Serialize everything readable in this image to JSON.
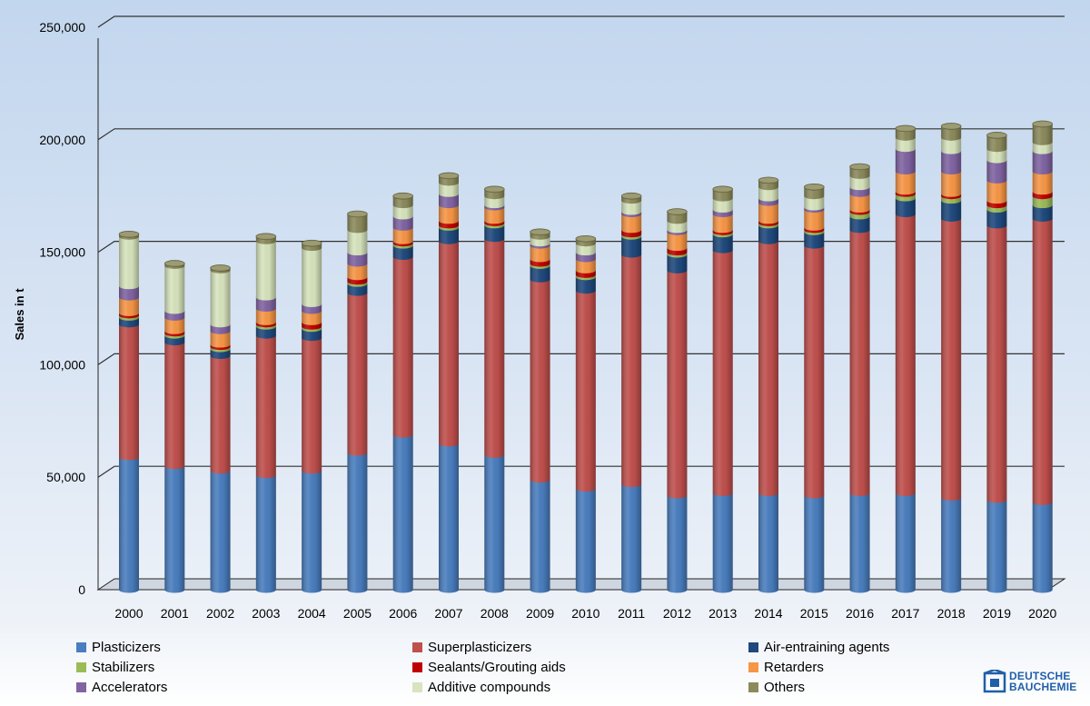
{
  "chart_data": {
    "type": "bar",
    "stacked": true,
    "ylabel": "Sales in t",
    "ylim": [
      0,
      250000
    ],
    "yticks": [
      "0",
      "50,000",
      "100,000",
      "150,000",
      "200,000",
      "250,000"
    ],
    "grid": true,
    "legend_position": "bottom",
    "categories": [
      "2000",
      "2001",
      "2002",
      "2003",
      "2004",
      "2005",
      "2006",
      "2007",
      "2008",
      "2009",
      "2010",
      "2011",
      "2012",
      "2013",
      "2014",
      "2015",
      "2016",
      "2017",
      "2018",
      "2019",
      "2020"
    ],
    "series": [
      {
        "name": "Plasticizers",
        "color": "#4a7ebf",
        "values": [
          59000,
          55000,
          53000,
          51000,
          53000,
          61000,
          69000,
          65000,
          60000,
          49000,
          45000,
          47000,
          42000,
          43000,
          43000,
          42000,
          43000,
          43000,
          41000,
          40000,
          39000
        ]
      },
      {
        "name": "Superplasticizers",
        "color": "#c0504d",
        "values": [
          59000,
          55000,
          51000,
          62000,
          59000,
          71000,
          79000,
          90000,
          96000,
          89000,
          88000,
          102000,
          100000,
          108000,
          112000,
          111000,
          117000,
          124000,
          124000,
          122000,
          126000
        ]
      },
      {
        "name": "Air-entraining agents",
        "color": "#1f497d",
        "values": [
          3000,
          3000,
          3000,
          4000,
          4000,
          4000,
          5000,
          6000,
          6000,
          6000,
          6000,
          8000,
          7000,
          7000,
          7000,
          6000,
          6000,
          7000,
          8000,
          7000,
          6000
        ]
      },
      {
        "name": "Stabilizers",
        "color": "#9bbb59",
        "values": [
          1000,
          1000,
          1000,
          1000,
          1000,
          1000,
          1000,
          1000,
          1000,
          1000,
          1000,
          1000,
          1000,
          1000,
          1000,
          1000,
          2000,
          2000,
          2000,
          2000,
          4000
        ]
      },
      {
        "name": "Sealants/Grouting aids",
        "color": "#c00000",
        "values": [
          1000,
          1000,
          1000,
          1000,
          2000,
          2000,
          1000,
          2000,
          1000,
          2000,
          2000,
          2000,
          2000,
          1000,
          1000,
          1000,
          1000,
          1000,
          1000,
          2000,
          2000
        ]
      },
      {
        "name": "Retarders",
        "color": "#f79646",
        "values": [
          7000,
          6000,
          6000,
          6000,
          5000,
          6000,
          6000,
          7000,
          6000,
          6000,
          5000,
          7000,
          7000,
          7000,
          8000,
          8000,
          7000,
          9000,
          10000,
          9000,
          9000
        ]
      },
      {
        "name": "Accelerators",
        "color": "#8064a2",
        "values": [
          5000,
          3000,
          3000,
          5000,
          3000,
          5000,
          5000,
          5000,
          1000,
          1000,
          3000,
          1000,
          1000,
          2000,
          2000,
          1000,
          3000,
          10000,
          9000,
          9000,
          9000
        ]
      },
      {
        "name": "Additive compounds",
        "color": "#d7e4bd",
        "values": [
          22000,
          20000,
          24000,
          25000,
          25000,
          10000,
          5000,
          5000,
          4000,
          3000,
          4000,
          5000,
          4000,
          5000,
          5000,
          5000,
          5000,
          5000,
          6000,
          5000,
          4000
        ]
      },
      {
        "name": "Others",
        "color": "#8b8a5c",
        "values": [
          1000,
          1000,
          1000,
          2000,
          2000,
          7000,
          4000,
          3000,
          3000,
          2000,
          2000,
          2000,
          4000,
          4000,
          3000,
          4000,
          4000,
          4000,
          5000,
          6000,
          8000
        ]
      }
    ]
  },
  "logo": {
    "line1": "DEUTSCHE",
    "line2": "BAUCHEMIE"
  }
}
